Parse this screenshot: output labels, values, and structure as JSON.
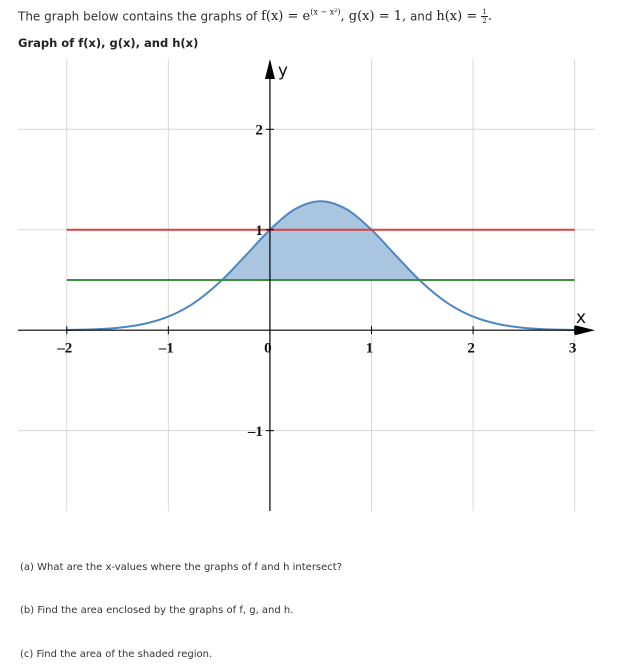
{
  "header": {
    "intro": "The graph below contains the graphs of",
    "f_base": "f(x) = e",
    "f_exp": "(x − x²)",
    "g_def": ", g(x) = 1,",
    "and": "and",
    "h_def": "h(x) =",
    "h_num": "1",
    "h_den": "2",
    "end": "."
  },
  "chart_data": {
    "type": "line",
    "title": "Graph of f(x), g(x), and h(x)",
    "x_label": "x",
    "y_label": "y",
    "x": [
      -2,
      -1.75,
      -1.5,
      -1.25,
      -1,
      -0.75,
      -0.5,
      -0.25,
      0,
      0.25,
      0.5,
      0.75,
      1,
      1.25,
      1.5,
      1.75,
      2,
      2.25,
      2.5,
      2.75,
      3
    ],
    "series": [
      {
        "color": "#4f86c0",
        "fill": "#a9c5df",
        "values": [
          0.0025,
          0.0081,
          0.0235,
          0.0601,
          0.1353,
          0.2691,
          0.4724,
          0.7316,
          1,
          1.2062,
          1.284,
          1.2062,
          1,
          0.7316,
          0.4724,
          0.2691,
          0.1353,
          0.0601,
          0.0235,
          0.0081,
          0.0025
        ]
      },
      {
        "color": "#d9403f",
        "values": [
          1,
          1,
          1,
          1,
          1,
          1,
          1,
          1,
          1,
          1,
          1,
          1,
          1,
          1,
          1,
          1,
          1,
          1,
          1,
          1,
          1
        ]
      },
      {
        "color": "#3f8f3f",
        "values": [
          0.5,
          0.5,
          0.5,
          0.5,
          0.5,
          0.5,
          0.5,
          0.5,
          0.5,
          0.5,
          0.5,
          0.5,
          0.5,
          0.5,
          0.5,
          0.5,
          0.5,
          0.5,
          0.5,
          0.5,
          0.5
        ]
      }
    ],
    "xlim": [
      -2.48,
      3.2
    ],
    "ylim": [
      -1.8,
      2.7
    ],
    "xticks": [
      {
        "value": -2,
        "label": "–2"
      },
      {
        "value": -1,
        "label": "–1"
      },
      0,
      1,
      2,
      3
    ],
    "yticks": [
      {
        "value": -1,
        "label": "–1"
      },
      1,
      2
    ],
    "grid": true
  },
  "questions": [
    "(a) What are the x-values where the graphs of f and h intersect?",
    "(b) Find the area enclosed by the graphs of f, g, and h.",
    "(c) Find the area of the shaded region."
  ]
}
